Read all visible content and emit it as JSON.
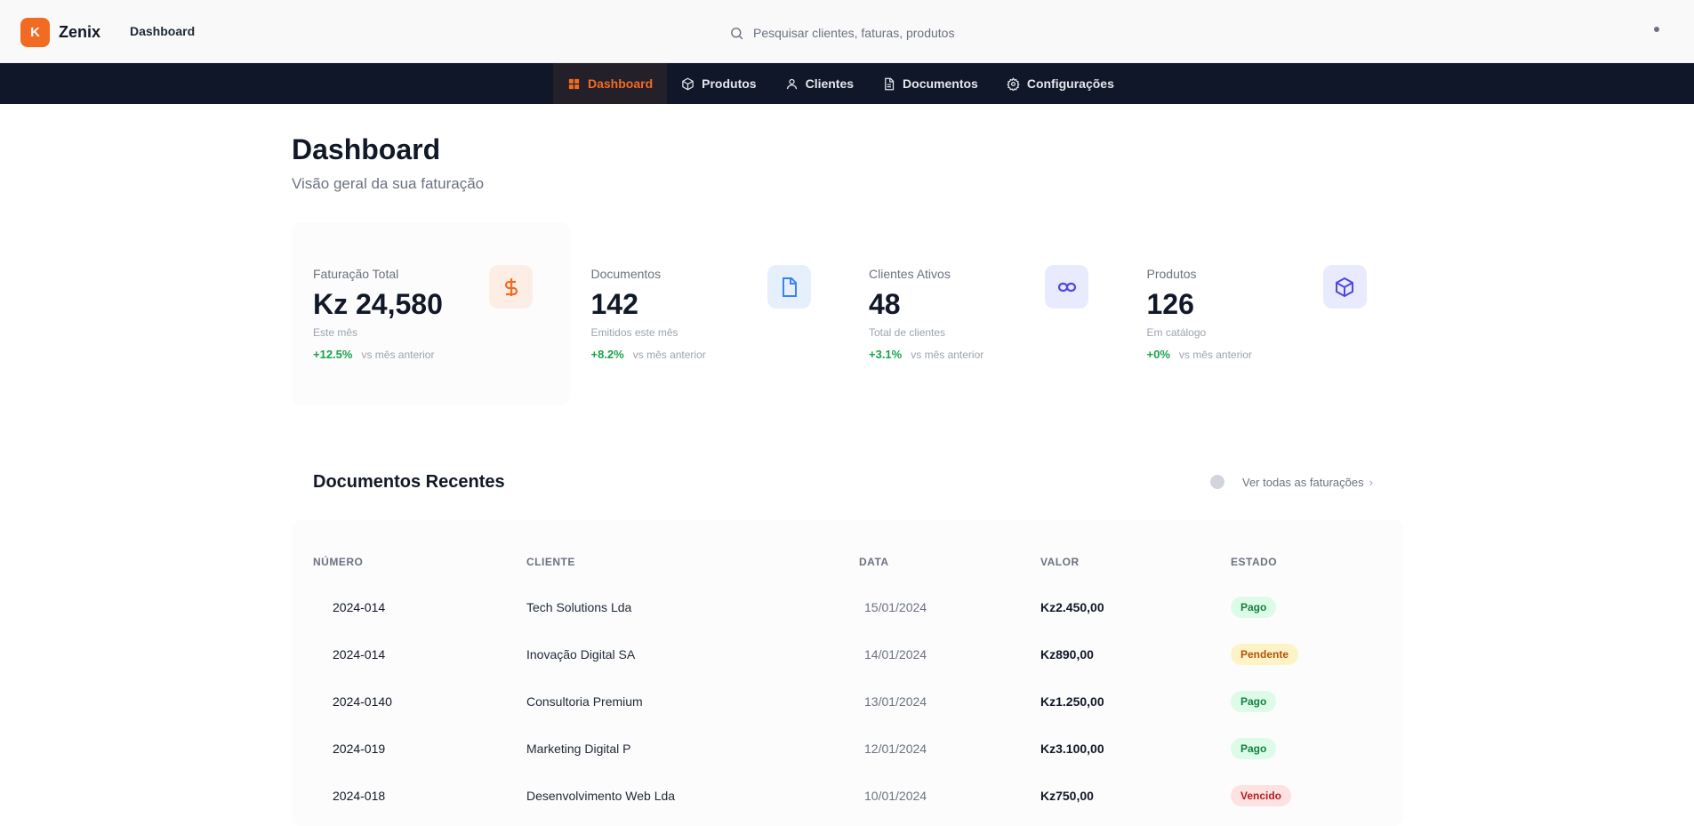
{
  "app": {
    "logo_letter": "K",
    "name": "Zenix",
    "breadcrumb": "Dashboard"
  },
  "search": {
    "placeholder": "Pesquisar clientes, faturas, produtos"
  },
  "nav": {
    "items": [
      {
        "label": "Dashboard",
        "icon": "grid-icon",
        "active": true
      },
      {
        "label": "Produtos",
        "icon": "box-icon",
        "active": false
      },
      {
        "label": "Clientes",
        "icon": "user-icon",
        "active": false
      },
      {
        "label": "Documentos",
        "icon": "document-icon",
        "active": false
      },
      {
        "label": "Configurações",
        "icon": "gear-icon",
        "active": false
      }
    ]
  },
  "page": {
    "title": "Dashboard",
    "subtitle": "Visão geral da sua faturação"
  },
  "stats": [
    {
      "label": "Faturação Total",
      "value": "Kz 24,580",
      "note": "Este mês",
      "delta": "+12.5%",
      "period": "vs mês anterior",
      "icon": "dollar-icon",
      "color": "#f26b22"
    },
    {
      "label": "Documentos",
      "value": "142",
      "note": "Emitidos este mês",
      "delta": "+8.2%",
      "period": "vs mês anterior",
      "icon": "document-icon",
      "color": "#3b82f6"
    },
    {
      "label": "Clientes Ativos",
      "value": "48",
      "note": "Total de clientes",
      "delta": "+3.1%",
      "period": "vs mês anterior",
      "icon": "link-icon",
      "color": "#4f46e5"
    },
    {
      "label": "Produtos",
      "value": "126",
      "note": "Em catálogo",
      "delta": "+0%",
      "period": "vs mês anterior",
      "icon": "cube-icon",
      "color": "#4f46e5"
    }
  ],
  "recent": {
    "title": "Documentos Recentes",
    "link_label": "Ver todas as faturações",
    "columns": [
      "NÚMERO",
      "CLIENTE",
      "DATA",
      "VALOR",
      "ESTADO"
    ],
    "rows": [
      {
        "number": "2024-014",
        "client": "Tech Solutions Lda",
        "date": "15/01/2024",
        "value": "Kz2.450,00",
        "status": "Pago",
        "status_type": "paid"
      },
      {
        "number": "2024-014",
        "client": "Inovação Digital SA",
        "date": "14/01/2024",
        "value": "Kz890,00",
        "status": "Pendente",
        "status_type": "pending"
      },
      {
        "number": "2024-0140",
        "client": "Consultoria Premium",
        "date": "13/01/2024",
        "value": "Kz1.250,00",
        "status": "Pago",
        "status_type": "paid"
      },
      {
        "number": "2024-019",
        "client": "Marketing Digital P",
        "date": "12/01/2024",
        "value": "Kz3.100,00",
        "status": "Pago",
        "status_type": "paid"
      },
      {
        "number": "2024-018",
        "client": "Desenvolvimento Web Lda",
        "date": "10/01/2024",
        "value": "Kz750,00",
        "status": "Vencido",
        "status_type": "overdue"
      }
    ]
  }
}
